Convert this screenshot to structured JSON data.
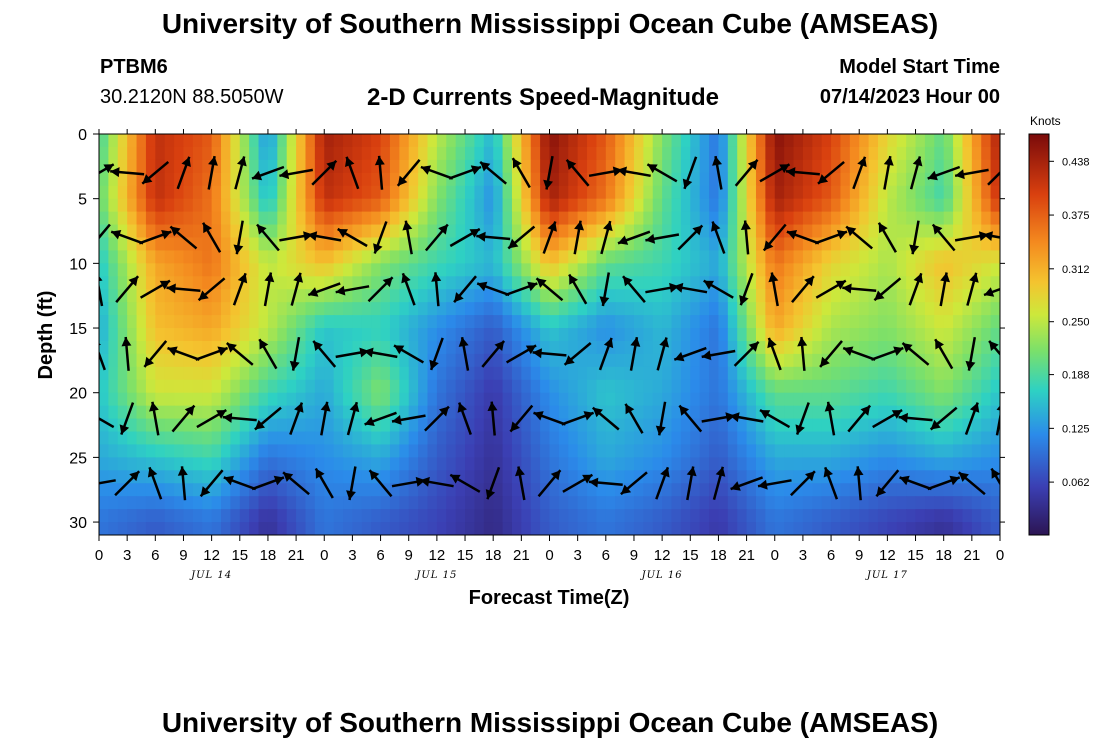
{
  "header": {
    "title": "University of Southern Mississippi Ocean Cube (AMSEAS)",
    "station_id": "PTBM6",
    "station_location": "30.2120N  88.5050W",
    "subtitle": "2-D Currents Speed-Magnitude",
    "model_label": "Model Start Time",
    "model_time": "07/14/2023 Hour 00"
  },
  "footer": {
    "title": "University of Southern Mississippi Ocean Cube (AMSEAS)"
  },
  "chart_data": {
    "type": "heatmap",
    "title": "2-D Currents Speed-Magnitude",
    "xlabel": "Forecast Time(Z)",
    "ylabel": "Depth (ft)",
    "xlim": [
      0,
      96
    ],
    "ylim": [
      0,
      31
    ],
    "y_inverted": true,
    "x_ticks": [
      0,
      3,
      6,
      9,
      12,
      15,
      18,
      21,
      24,
      27,
      30,
      33,
      36,
      39,
      42,
      45,
      48,
      51,
      54,
      57,
      60,
      63,
      66,
      69,
      72,
      75,
      78,
      81,
      84,
      87,
      90,
      93,
      96
    ],
    "x_tick_labels": [
      "0",
      "3",
      "6",
      "9",
      "12",
      "15",
      "18",
      "21",
      "0",
      "3",
      "6",
      "9",
      "12",
      "15",
      "18",
      "21",
      "0",
      "3",
      "6",
      "9",
      "12",
      "15",
      "18",
      "21",
      "0",
      "3",
      "6",
      "9",
      "12",
      "15",
      "18",
      "21",
      "0"
    ],
    "date_labels": [
      {
        "x": 12,
        "label": "JUL 14"
      },
      {
        "x": 36,
        "label": "JUL 15"
      },
      {
        "x": 60,
        "label": "JUL 16"
      },
      {
        "x": 84,
        "label": "JUL 17"
      }
    ],
    "y_ticks": [
      0,
      5,
      10,
      15,
      20,
      25,
      30
    ],
    "y_tick_labels": [
      "0",
      "5",
      "10",
      "15",
      "20",
      "25",
      "30"
    ],
    "colorbar": {
      "title": "Knots",
      "min": 0.0,
      "max": 0.47,
      "ticks": [
        0.062,
        0.125,
        0.188,
        0.25,
        0.312,
        0.375,
        0.438
      ],
      "tick_labels": [
        "0.062",
        "0.125",
        "0.188",
        "0.250",
        "0.312",
        "0.375",
        "0.438"
      ]
    },
    "times": [
      0,
      6,
      12,
      18,
      24,
      30,
      36,
      42,
      48,
      54,
      60,
      66,
      72,
      78,
      84,
      90,
      96
    ],
    "depths": [
      0,
      5,
      10,
      15,
      20,
      25,
      30
    ],
    "speed_knots": [
      [
        0.18,
        0.42,
        0.38,
        0.12,
        0.44,
        0.4,
        0.25,
        0.15,
        0.46,
        0.38,
        0.22,
        0.1,
        0.46,
        0.4,
        0.28,
        0.2,
        0.44
      ],
      [
        0.2,
        0.42,
        0.36,
        0.15,
        0.42,
        0.38,
        0.22,
        0.12,
        0.44,
        0.36,
        0.2,
        0.1,
        0.44,
        0.38,
        0.25,
        0.18,
        0.42
      ],
      [
        0.16,
        0.32,
        0.36,
        0.25,
        0.3,
        0.22,
        0.18,
        0.15,
        0.3,
        0.2,
        0.18,
        0.14,
        0.36,
        0.28,
        0.24,
        0.3,
        0.26
      ],
      [
        0.14,
        0.3,
        0.32,
        0.25,
        0.16,
        0.17,
        0.12,
        0.08,
        0.16,
        0.12,
        0.15,
        0.1,
        0.32,
        0.24,
        0.22,
        0.26,
        0.2
      ],
      [
        0.16,
        0.26,
        0.26,
        0.18,
        0.14,
        0.22,
        0.1,
        0.05,
        0.12,
        0.16,
        0.14,
        0.1,
        0.2,
        0.2,
        0.18,
        0.22,
        0.16
      ],
      [
        0.14,
        0.16,
        0.18,
        0.1,
        0.12,
        0.14,
        0.08,
        0.04,
        0.1,
        0.14,
        0.12,
        0.08,
        0.14,
        0.14,
        0.12,
        0.14,
        0.12
      ],
      [
        0.1,
        0.08,
        0.1,
        0.04,
        0.1,
        0.08,
        0.06,
        0.03,
        0.08,
        0.1,
        0.08,
        0.05,
        0.1,
        0.08,
        0.06,
        0.04,
        0.08
      ]
    ],
    "vector_times": [
      0,
      3,
      6,
      9,
      12,
      15,
      18,
      21,
      24,
      27,
      30,
      33,
      36,
      39,
      42,
      45,
      48,
      51,
      54,
      57,
      60,
      63,
      66,
      69,
      72,
      75,
      78,
      81,
      84,
      87,
      90,
      93,
      96
    ],
    "vector_depths": [
      3,
      8,
      12,
      17,
      22,
      27
    ],
    "vector_direction_pattern_deg": [
      30,
      75,
      95,
      120,
      150,
      175,
      200,
      230,
      260,
      250,
      220,
      190,
      160,
      130,
      100,
      70,
      45,
      20,
      10,
      50,
      80,
      110,
      140,
      170
    ],
    "vector_unit": "direction toward, degrees from east"
  }
}
